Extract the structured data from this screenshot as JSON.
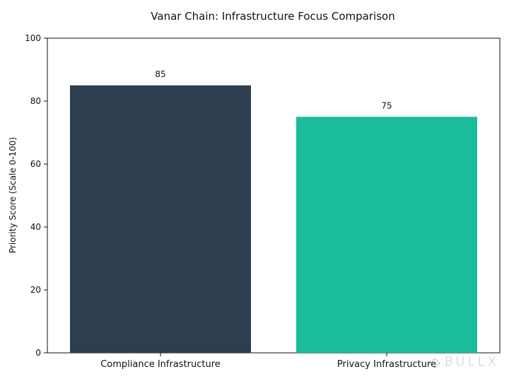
{
  "chart_data": {
    "type": "bar",
    "title": "Vanar Chain: Infrastructure Focus Comparison",
    "xlabel": "",
    "ylabel": "Priority Score (Scale 0-100)",
    "categories": [
      "Compliance Infrastructure",
      "Privacy Infrastructure"
    ],
    "values": [
      85,
      75
    ],
    "data_labels": [
      "85",
      "75"
    ],
    "ylim": [
      0,
      100
    ],
    "yticks": [
      "0",
      "20",
      "40",
      "60",
      "80",
      "100"
    ],
    "colors": [
      "#2c3e50",
      "#1abc9c"
    ],
    "grid": false,
    "legend": "none"
  },
  "watermark": {
    "logo": "◇",
    "brand": "BULLX"
  }
}
